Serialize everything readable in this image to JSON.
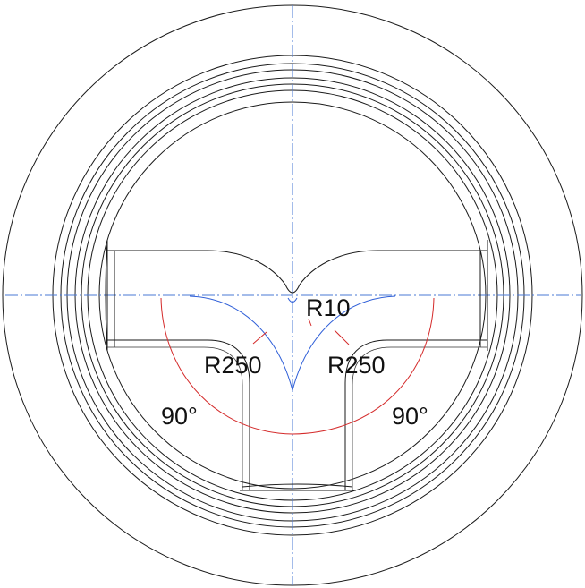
{
  "colors": {
    "outline": "#1a1a1a",
    "centerline": "#4a78d6",
    "dimension": "#d42a2a",
    "construction": "#2f5fd8"
  },
  "dimensions": {
    "center_radius": "R10",
    "left_radius": "R250",
    "right_radius": "R250",
    "left_angle": "90°",
    "right_angle": "90°"
  }
}
